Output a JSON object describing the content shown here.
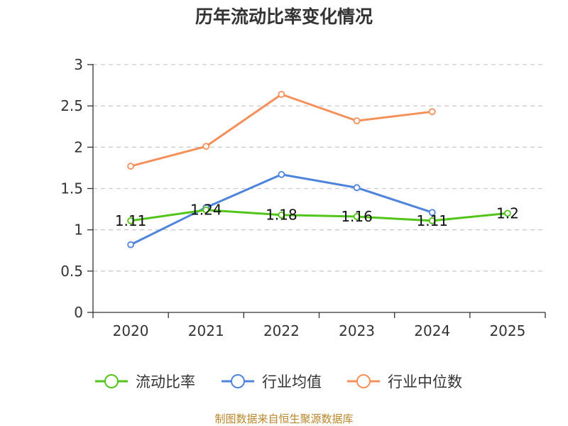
{
  "chart_data": {
    "type": "line",
    "title": "历年流动比率变化情况",
    "categories": [
      "2020",
      "2021",
      "2022",
      "2023",
      "2024",
      "2025"
    ],
    "y_ticks": [
      "0",
      "0.5",
      "1",
      "1.5",
      "2",
      "2.5",
      "3"
    ],
    "ylim": [
      0,
      3
    ],
    "grid": true,
    "legend_position": "bottom",
    "series": [
      {
        "name": "流动比率",
        "color": "#52c41a",
        "values": [
          1.11,
          1.24,
          1.18,
          1.16,
          1.11,
          1.2
        ],
        "labels": [
          "1.11",
          "1.24",
          "1.18",
          "1.16",
          "1.11",
          "1.2"
        ]
      },
      {
        "name": "行业均值",
        "color": "#4f84dc",
        "values": [
          0.82,
          1.27,
          1.67,
          1.51,
          1.21,
          null
        ]
      },
      {
        "name": "行业中位数",
        "color": "#f5905a",
        "values": [
          1.77,
          2.01,
          2.64,
          2.32,
          2.43,
          null
        ]
      }
    ]
  },
  "source": {
    "text": "制图数据来自恒生聚源数据库",
    "color": "#b8862b"
  }
}
